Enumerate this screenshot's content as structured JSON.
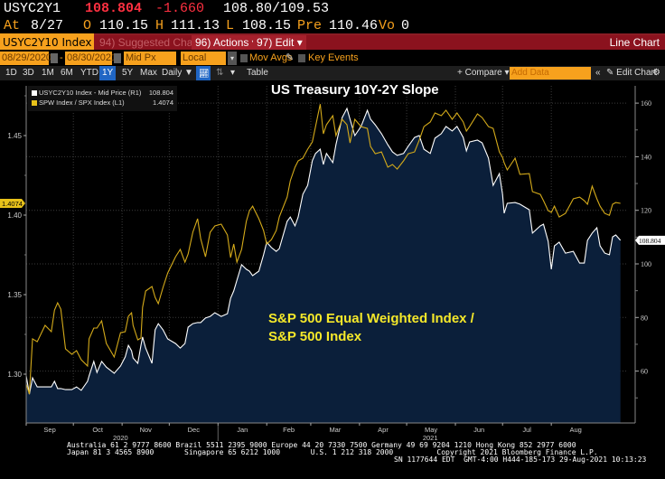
{
  "quote": {
    "ticker": "USYC2Y1",
    "last": "108.804",
    "change": "-1.660",
    "bid_ask": "108.80/109.53",
    "at_label": "At",
    "at_date": "8/27",
    "open_label": "O",
    "open": "110.15",
    "high_label": "H",
    "high": "111.13",
    "low_label": "L",
    "low": "108.15",
    "prev_label": "Pre",
    "prev": "110.46",
    "vol_label": "Vo",
    "vol": "0"
  },
  "function_bar": {
    "security": "USYC2Y10 Index",
    "suggested": "94) Suggested Charts",
    "actions": "96) Actions ▾",
    "edit": "97) Edit ▾",
    "view_name": "Line Chart"
  },
  "settings": {
    "start_date": "08/29/2020",
    "dash": "-",
    "end_date": "08/30/2021",
    "price_field": "Mid Px",
    "currency": "Local CCY",
    "mov_avgs": "Mov Avgs",
    "key_events": "Key Events"
  },
  "range_bar": {
    "ranges": [
      "1D",
      "3D",
      "1M",
      "6M",
      "YTD",
      "1Y",
      "5Y",
      "Max"
    ],
    "selected": "1Y",
    "frequency": "Daily ▼",
    "table": "Table",
    "compare": "+ Compare ▾",
    "add_data_placeholder": "Add Data",
    "collapse": "«",
    "edit_chart": "✎ Edit Chart",
    "gear": "⚙"
  },
  "colors": {
    "amber": "#f7a11d",
    "header_red": "#8b121e",
    "white_series": "#ffffff",
    "yellow_series": "#d4aa1a",
    "area_fill": "#0b1f3a"
  },
  "chart_data": {
    "type": "line",
    "title": "US Treasury 10Y-2Y Slope",
    "annotation": [
      "S&P 500 Equal Weighted Index /",
      "S&P 500 Index"
    ],
    "x_start": "2020-08-31",
    "x_unit": "days since 2020-08-31",
    "x_ticks": [
      {
        "label": "Sep",
        "day": 0
      },
      {
        "label": "Oct",
        "day": 30
      },
      {
        "label": "Nov",
        "day": 61
      },
      {
        "label": "Dec",
        "day": 91
      },
      {
        "label": "Jan",
        "day": 122
      },
      {
        "label": "Feb",
        "day": 153
      },
      {
        "label": "Mar",
        "day": 181
      },
      {
        "label": "Apr",
        "day": 212
      },
      {
        "label": "May",
        "day": 242
      },
      {
        "label": "Jun",
        "day": 273
      },
      {
        "label": "Jul",
        "day": 303
      },
      {
        "label": "Aug",
        "day": 334
      }
    ],
    "year_labels": [
      {
        "label": "2020",
        "day": 60
      },
      {
        "label": "2021",
        "day": 257
      }
    ],
    "x_range_days": [
      -2,
      390
    ],
    "left_axis": {
      "ticks": [
        "1.30",
        "1.35",
        "1.40",
        "1.45"
      ],
      "tick_values": [
        1.3,
        1.35,
        1.4,
        1.45
      ],
      "ylim": [
        1.276,
        1.488
      ]
    },
    "right_axis": {
      "ticks": [
        "60",
        "80",
        "100",
        "120",
        "140",
        "160"
      ],
      "tick_values": [
        60,
        80,
        100,
        120,
        140,
        160
      ],
      "ylim": [
        41.5,
        167
      ]
    },
    "legend": [
      {
        "name": "USYC2Y10 Index - Mid Price (R1)",
        "value": "108.804",
        "color": "#ffffff"
      },
      {
        "name": "SPW Index / SPX Index (L1)",
        "value": "1.4074",
        "color": "#e8c21a"
      }
    ],
    "last_labels": {
      "left": "1.4074",
      "right": "108.804"
    },
    "series": [
      {
        "name": "USYC2Y10 Index - Mid Price (R1)",
        "axis": "right",
        "type": "area",
        "points": [
          [
            0,
            58.2
          ],
          [
            2,
            51.4
          ],
          [
            4,
            57.5
          ],
          [
            7,
            54.1
          ],
          [
            12,
            54.1
          ],
          [
            16,
            54.1
          ],
          [
            18,
            56.2
          ],
          [
            20,
            53.5
          ],
          [
            22,
            53.5
          ],
          [
            25,
            53.1
          ],
          [
            29,
            53.1
          ],
          [
            32,
            54.1
          ],
          [
            35,
            52.8
          ],
          [
            39,
            56.2
          ],
          [
            40,
            58.2
          ],
          [
            43,
            63.6
          ],
          [
            45,
            59.5
          ],
          [
            48,
            63.6
          ],
          [
            51,
            61.5
          ],
          [
            56,
            59.2
          ],
          [
            60,
            61.9
          ],
          [
            63,
            65.3
          ],
          [
            65,
            69.6
          ],
          [
            67,
            67.6
          ],
          [
            68,
            64.9
          ],
          [
            71,
            62.9
          ],
          [
            73,
            69.6
          ],
          [
            74,
            72.7
          ],
          [
            76,
            68.6
          ],
          [
            80,
            62.9
          ],
          [
            82,
            75.4
          ],
          [
            84,
            77.7
          ],
          [
            87,
            75.4
          ],
          [
            90,
            72.0
          ],
          [
            95,
            70.3
          ],
          [
            98,
            68.6
          ],
          [
            101,
            70.3
          ],
          [
            103,
            76.4
          ],
          [
            106,
            77.7
          ],
          [
            109,
            78.1
          ],
          [
            111,
            78.1
          ],
          [
            114,
            79.8
          ],
          [
            117,
            80.4
          ],
          [
            120,
            81.8
          ],
          [
            124,
            80.4
          ],
          [
            128,
            81.4
          ],
          [
            130,
            87.2
          ],
          [
            132,
            89.9
          ],
          [
            134,
            93.9
          ],
          [
            137,
            99.7
          ],
          [
            140,
            98.0
          ],
          [
            142,
            97.3
          ],
          [
            144,
            95.6
          ],
          [
            148,
            97.3
          ],
          [
            151,
            103.4
          ],
          [
            153,
            108.1
          ],
          [
            156,
            106.1
          ],
          [
            159,
            104.7
          ],
          [
            161,
            105.7
          ],
          [
            166,
            115.9
          ],
          [
            168,
            117.5
          ],
          [
            171,
            114.2
          ],
          [
            173,
            117.5
          ],
          [
            176,
            126.0
          ],
          [
            179,
            129.3
          ],
          [
            182,
            138.5
          ],
          [
            184,
            141.2
          ],
          [
            187,
            142.8
          ],
          [
            189,
            137.1
          ],
          [
            191,
            141.2
          ],
          [
            195,
            137.8
          ],
          [
            197,
            144.5
          ],
          [
            201,
            154.6
          ],
          [
            204,
            158.0
          ],
          [
            206,
            154.0
          ],
          [
            209,
            147.9
          ],
          [
            213,
            151.3
          ],
          [
            217,
            157.3
          ],
          [
            219,
            154.0
          ],
          [
            222,
            151.9
          ],
          [
            226,
            148.6
          ],
          [
            230,
            144.5
          ],
          [
            233,
            141.8
          ],
          [
            236,
            140.5
          ],
          [
            240,
            141.2
          ],
          [
            243,
            143.9
          ],
          [
            247,
            147.2
          ],
          [
            250,
            147.9
          ],
          [
            253,
            142.8
          ],
          [
            257,
            141.2
          ],
          [
            260,
            146.9
          ],
          [
            264,
            148.6
          ],
          [
            267,
            151.3
          ],
          [
            271,
            149.6
          ],
          [
            274,
            151.3
          ],
          [
            278,
            147.2
          ],
          [
            280,
            142.2
          ],
          [
            282,
            145.5
          ],
          [
            287,
            146.2
          ],
          [
            290,
            145.2
          ],
          [
            294,
            139.5
          ],
          [
            297,
            129.3
          ],
          [
            301,
            133.7
          ],
          [
            303,
            126.0
          ],
          [
            304,
            118.9
          ],
          [
            306,
            122.6
          ],
          [
            311,
            122.9
          ],
          [
            314,
            122.3
          ],
          [
            320,
            120.2
          ],
          [
            322,
            111.5
          ],
          [
            327,
            114.2
          ],
          [
            329,
            114.8
          ],
          [
            332,
            108.4
          ],
          [
            334,
            98.0
          ],
          [
            336,
            106.7
          ],
          [
            339,
            108.1
          ],
          [
            343,
            104.0
          ],
          [
            348,
            104.7
          ],
          [
            352,
            100.3
          ],
          [
            355,
            100.3
          ],
          [
            357,
            108.8
          ],
          [
            360,
            111.5
          ],
          [
            363,
            113.5
          ],
          [
            365,
            106.7
          ],
          [
            368,
            104.0
          ],
          [
            371,
            103.4
          ],
          [
            373,
            110.1
          ],
          [
            375,
            110.8
          ],
          [
            378,
            108.8
          ]
        ]
      },
      {
        "name": "SPW Index / SPX Index (L1)",
        "axis": "left",
        "type": "line",
        "points": [
          [
            0,
            1.2938
          ],
          [
            2,
            1.2875
          ],
          [
            4,
            1.3222
          ],
          [
            7,
            1.3204
          ],
          [
            12,
            1.3307
          ],
          [
            16,
            1.3267
          ],
          [
            18,
            1.3403
          ],
          [
            20,
            1.3449
          ],
          [
            22,
            1.3409
          ],
          [
            25,
            1.3159
          ],
          [
            29,
            1.3125
          ],
          [
            32,
            1.3148
          ],
          [
            35,
            1.3091
          ],
          [
            39,
            1.3051
          ],
          [
            40,
            1.3222
          ],
          [
            43,
            1.329
          ],
          [
            45,
            1.329
          ],
          [
            48,
            1.3335
          ],
          [
            51,
            1.3193
          ],
          [
            56,
            1.3108
          ],
          [
            60,
            1.3261
          ],
          [
            63,
            1.3267
          ],
          [
            65,
            1.3364
          ],
          [
            67,
            1.3386
          ],
          [
            68,
            1.3307
          ],
          [
            71,
            1.3216
          ],
          [
            73,
            1.3227
          ],
          [
            74,
            1.342
          ],
          [
            76,
            1.3523
          ],
          [
            80,
            1.3551
          ],
          [
            82,
            1.3483
          ],
          [
            84,
            1.3443
          ],
          [
            87,
            1.3545
          ],
          [
            90,
            1.3636
          ],
          [
            95,
            1.3738
          ],
          [
            98,
            1.3784
          ],
          [
            101,
            1.3704
          ],
          [
            103,
            1.3755
          ],
          [
            106,
            1.3892
          ],
          [
            109,
            1.3977
          ],
          [
            111,
            1.3852
          ],
          [
            114,
            1.3738
          ],
          [
            117,
            1.3892
          ],
          [
            120,
            1.3932
          ],
          [
            124,
            1.3943
          ],
          [
            128,
            1.3875
          ],
          [
            130,
            1.3733
          ],
          [
            132,
            1.3818
          ],
          [
            134,
            1.3704
          ],
          [
            137,
            1.3784
          ],
          [
            140,
            1.396
          ],
          [
            142,
            1.4028
          ],
          [
            144,
            1.4056
          ],
          [
            148,
            1.3977
          ],
          [
            151,
            1.3903
          ],
          [
            153,
            1.3818
          ],
          [
            156,
            1.3846
          ],
          [
            159,
            1.3903
          ],
          [
            161,
            1.3988
          ],
          [
            166,
            1.4113
          ],
          [
            168,
            1.4216
          ],
          [
            171,
            1.4301
          ],
          [
            173,
            1.4341
          ],
          [
            176,
            1.4358
          ],
          [
            179,
            1.4414
          ],
          [
            182,
            1.446
          ],
          [
            184,
            1.4556
          ],
          [
            187,
            1.4698
          ],
          [
            189,
            1.4511
          ],
          [
            191,
            1.4568
          ],
          [
            195,
            1.4625
          ],
          [
            197,
            1.45
          ],
          [
            201,
            1.4602
          ],
          [
            204,
            1.4568
          ],
          [
            206,
            1.4454
          ],
          [
            209,
            1.4602
          ],
          [
            213,
            1.4556
          ],
          [
            217,
            1.4545
          ],
          [
            219,
            1.4431
          ],
          [
            222,
            1.4386
          ],
          [
            226,
            1.4397
          ],
          [
            230,
            1.4301
          ],
          [
            233,
            1.4318
          ],
          [
            236,
            1.4289
          ],
          [
            240,
            1.4341
          ],
          [
            243,
            1.4386
          ],
          [
            247,
            1.4397
          ],
          [
            250,
            1.4471
          ],
          [
            253,
            1.4556
          ],
          [
            257,
            1.4585
          ],
          [
            260,
            1.4642
          ],
          [
            264,
            1.4625
          ],
          [
            267,
            1.4659
          ],
          [
            271,
            1.4602
          ],
          [
            274,
            1.4642
          ],
          [
            278,
            1.4585
          ],
          [
            280,
            1.4528
          ],
          [
            282,
            1.4556
          ],
          [
            287,
            1.4636
          ],
          [
            290,
            1.4613
          ],
          [
            294,
            1.4556
          ],
          [
            297,
            1.4545
          ],
          [
            301,
            1.4397
          ],
          [
            303,
            1.4363
          ],
          [
            304,
            1.4329
          ],
          [
            306,
            1.4284
          ],
          [
            311,
            1.4358
          ],
          [
            314,
            1.4256
          ],
          [
            320,
            1.4261
          ],
          [
            322,
            1.4148
          ],
          [
            327,
            1.413
          ],
          [
            329,
            1.4091
          ],
          [
            332,
            1.4028
          ],
          [
            334,
            1.4017
          ],
          [
            336,
            1.4056
          ],
          [
            339,
            1.3988
          ],
          [
            343,
            1.4011
          ],
          [
            348,
            1.4102
          ],
          [
            352,
            1.4113
          ],
          [
            355,
            1.4091
          ],
          [
            357,
            1.4068
          ],
          [
            360,
            1.4182
          ],
          [
            363,
            1.4102
          ],
          [
            365,
            1.4056
          ],
          [
            368,
            1.4011
          ],
          [
            371,
            1.3999
          ],
          [
            373,
            1.4068
          ],
          [
            375,
            1.4079
          ],
          [
            378,
            1.4074
          ]
        ]
      }
    ]
  },
  "footer": {
    "line1": "Australia 61 2 9777 8600 Brazil 5511 2395 9000 Europe 44 20 7330 7500 Germany 49 69 9204 1210 Hong Kong 852 2977 6000",
    "line2": "Japan 81 3 4565 8900       Singapore 65 6212 1000       U.S. 1 212 318 2000          Copyright 2021 Bloomberg Finance L.P.",
    "line3": "SN 1177644 EDT  GMT-4:00 H444-185-173 29-Aug-2021 10:13:23"
  }
}
